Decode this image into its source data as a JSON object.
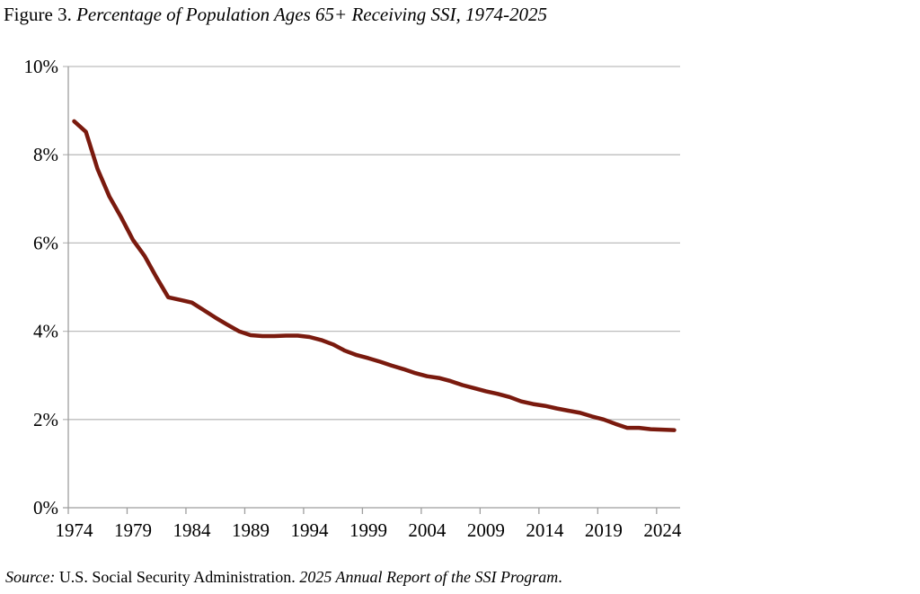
{
  "chart_data": {
    "type": "line",
    "title_prefix": "Figure 3.",
    "title": "Percentage of Population Ages 65+ Receiving SSI, 1974-2025",
    "xlabel": "",
    "ylabel": "",
    "ylim": [
      0,
      10
    ],
    "yticks": [
      "0%",
      "2%",
      "4%",
      "6%",
      "8%",
      "10%"
    ],
    "ytick_values": [
      0,
      2,
      4,
      6,
      8,
      10
    ],
    "xtick_labels": [
      "1974",
      "1979",
      "1984",
      "1989",
      "1994",
      "1999",
      "2004",
      "2009",
      "2014",
      "2019",
      "2024"
    ],
    "grid": "horizontal",
    "line_color": "#7a1a0e",
    "x": [
      1974,
      1975,
      1976,
      1977,
      1978,
      1979,
      1980,
      1981,
      1982,
      1983,
      1984,
      1985,
      1986,
      1987,
      1988,
      1989,
      1990,
      1991,
      1992,
      1993,
      1994,
      1995,
      1996,
      1997,
      1998,
      1999,
      2000,
      2001,
      2002,
      2003,
      2004,
      2005,
      2006,
      2007,
      2008,
      2009,
      2010,
      2011,
      2012,
      2013,
      2014,
      2015,
      2016,
      2017,
      2018,
      2019,
      2020,
      2021,
      2022,
      2023,
      2024,
      2025
    ],
    "series": [
      {
        "values": [
          8.76,
          8.52,
          7.67,
          7.05,
          6.58,
          6.07,
          5.7,
          5.22,
          4.77,
          4.71,
          4.65,
          4.48,
          4.31,
          4.15,
          4.0,
          3.91,
          3.89,
          3.89,
          3.9,
          3.9,
          3.87,
          3.8,
          3.7,
          3.56,
          3.46,
          3.39,
          3.31,
          3.22,
          3.14,
          3.05,
          2.98,
          2.94,
          2.87,
          2.78,
          2.71,
          2.64,
          2.58,
          2.51,
          2.41,
          2.35,
          2.31,
          2.25,
          2.2,
          2.15,
          2.07,
          2.0,
          1.9,
          1.81,
          1.81,
          1.78,
          1.77,
          1.76
        ]
      }
    ]
  },
  "source": {
    "label": "Source:",
    "org": " U.S. Social Security Administration. ",
    "report": "2025 Annual Report of the SSI Program",
    "end": "."
  }
}
